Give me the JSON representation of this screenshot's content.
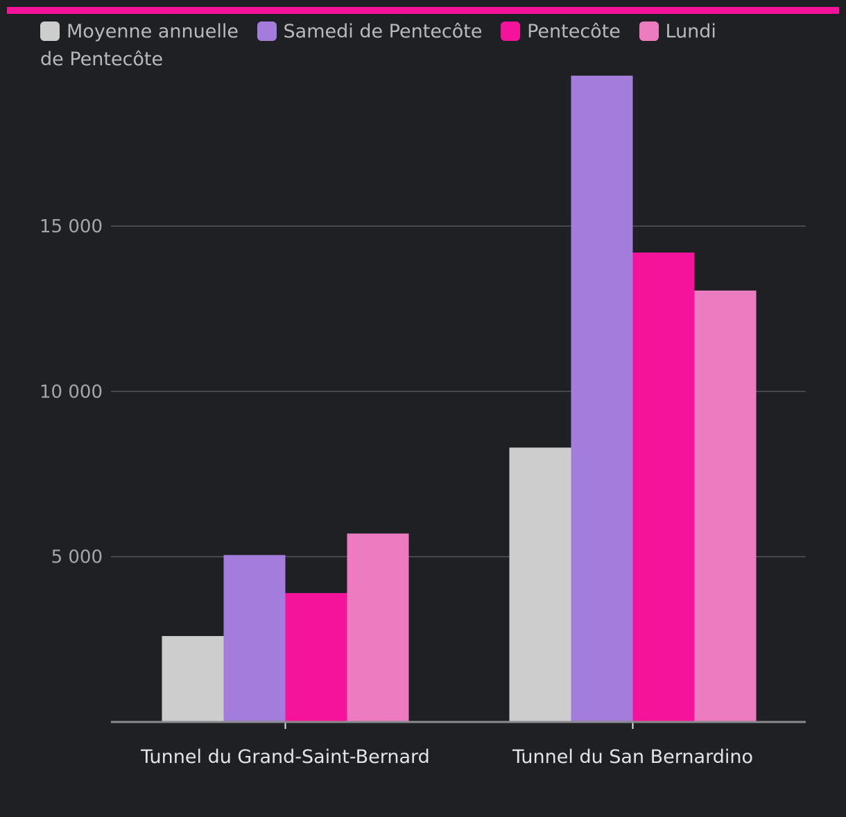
{
  "colors": {
    "background": "#1f2023",
    "accent": "#f5139b",
    "grid": "#545559",
    "axis": "#8b8b8e",
    "tick_text": "#a6a6a9",
    "category_text": "#e4e4e6",
    "legend_text": "#b9b9bc"
  },
  "chart_data": {
    "type": "bar",
    "title": "",
    "xlabel": "",
    "ylabel": "",
    "ylim": [
      0,
      21000
    ],
    "yticks": [
      5000,
      10000,
      15000
    ],
    "ytick_labels": [
      "5 000",
      "10 000",
      "15 000"
    ],
    "categories": [
      "Tunnel du Grand-Saint-Bernard",
      "Tunnel du San Bernardino"
    ],
    "series": [
      {
        "name": "Moyenne annuelle",
        "color": "#cdcdcd",
        "values": [
          2600,
          8300
        ]
      },
      {
        "name": "Samedi de Pentecôte",
        "color": "#a47cdc",
        "values": [
          5050,
          19550
        ]
      },
      {
        "name": "Pentecôte",
        "color": "#f5139b",
        "values": [
          3900,
          14200
        ]
      },
      {
        "name": "Lundi de Pentecôte",
        "color": "#ed7bbf",
        "values": [
          5700,
          13050
        ]
      }
    ],
    "grid": true,
    "legend_position": "top"
  }
}
